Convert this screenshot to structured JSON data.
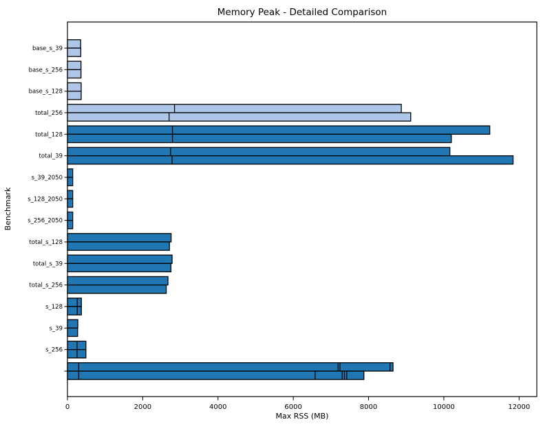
{
  "figure": {
    "background": "#ffffff",
    "bar_color_dark": "#2077b4",
    "bar_color_light": "#aec7e8",
    "bar_edge_color": "#000000"
  },
  "chart_data": {
    "type": "bar",
    "orientation": "horizontal",
    "title": "Memory Peak - Detailed Comparison",
    "xlabel": "Max RSS (MB)",
    "ylabel": "Benchmark",
    "xlim": [
      0,
      12470
    ],
    "xticks": [
      0,
      2000,
      4000,
      6000,
      8000,
      10000,
      12000
    ],
    "grid": false,
    "legend": false,
    "bars_per_group": 2,
    "rows": [
      {
        "label": "base_s_39",
        "color": "light",
        "bars": [
          {
            "value": 350,
            "markers": []
          },
          {
            "value": 355,
            "markers": []
          }
        ]
      },
      {
        "label": "base_s_256",
        "color": "light",
        "bars": [
          {
            "value": 360,
            "markers": []
          },
          {
            "value": 360,
            "markers": []
          }
        ]
      },
      {
        "label": "base_s_128",
        "color": "light",
        "bars": [
          {
            "value": 365,
            "markers": []
          },
          {
            "value": 365,
            "markers": []
          }
        ]
      },
      {
        "label": "total_256",
        "color": "light",
        "bars": [
          {
            "value": 8870,
            "markers": [
              2845
            ]
          },
          {
            "value": 9120,
            "markers": [
              2700
            ]
          }
        ]
      },
      {
        "label": "total_128",
        "color": "dark",
        "bars": [
          {
            "value": 11220,
            "markers": [
              2790
            ]
          },
          {
            "value": 10200,
            "markers": [
              2790
            ]
          }
        ]
      },
      {
        "label": "total_39",
        "color": "dark",
        "bars": [
          {
            "value": 10160,
            "markers": [
              2740
            ]
          },
          {
            "value": 11840,
            "markers": [
              2780
            ]
          }
        ]
      },
      {
        "label": "s_39_2050",
        "color": "dark",
        "bars": [
          {
            "value": 140,
            "markers": []
          },
          {
            "value": 140,
            "markers": []
          }
        ]
      },
      {
        "label": "s_128_2050",
        "color": "dark",
        "bars": [
          {
            "value": 140,
            "markers": []
          },
          {
            "value": 140,
            "markers": []
          }
        ]
      },
      {
        "label": "s_256_2050",
        "color": "dark",
        "bars": [
          {
            "value": 140,
            "markers": []
          },
          {
            "value": 140,
            "markers": []
          }
        ]
      },
      {
        "label": "total_s_128",
        "color": "dark",
        "bars": [
          {
            "value": 2755,
            "markers": []
          },
          {
            "value": 2710,
            "markers": []
          }
        ]
      },
      {
        "label": "total_s_39",
        "color": "dark",
        "bars": [
          {
            "value": 2780,
            "markers": []
          },
          {
            "value": 2750,
            "markers": []
          }
        ]
      },
      {
        "label": "total_s_256",
        "color": "dark",
        "bars": [
          {
            "value": 2670,
            "markers": []
          },
          {
            "value": 2625,
            "markers": []
          }
        ]
      },
      {
        "label": "s_128",
        "color": "dark",
        "bars": [
          {
            "value": 370,
            "markers": [
              261
            ]
          },
          {
            "value": 370,
            "markers": [
              261
            ]
          }
        ]
      },
      {
        "label": "s_39",
        "color": "dark",
        "bars": [
          {
            "value": 275,
            "markers": []
          },
          {
            "value": 270,
            "markers": []
          }
        ]
      },
      {
        "label": "s_256",
        "color": "dark",
        "bars": [
          {
            "value": 490,
            "markers": [
              255
            ]
          },
          {
            "value": 490,
            "markers": [
              255
            ]
          }
        ]
      },
      {
        "label": "",
        "color": "dark",
        "bars": [
          {
            "value": 8650,
            "markers": [
              300,
              7190,
              7240,
              8570
            ]
          },
          {
            "value": 7876,
            "markers": [
              300,
              6580,
              7300,
              7360,
              7420
            ]
          }
        ]
      }
    ]
  }
}
